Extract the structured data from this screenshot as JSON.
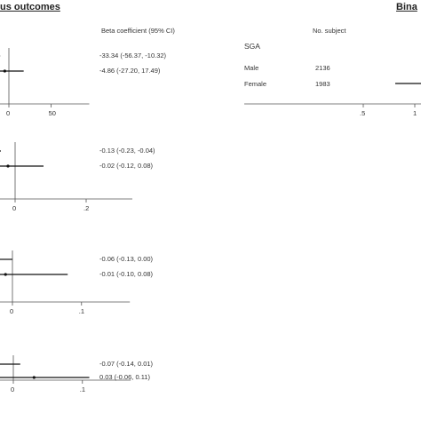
{
  "headings": {
    "left": "us outcomes",
    "right": "Bina"
  },
  "left_panel": {
    "column_header": "Beta coefficient (95% CI)"
  },
  "right_panel": {
    "column_header": "No. subject",
    "section_label": "SGA",
    "rows": [
      {
        "label": "Male",
        "n": "2136"
      },
      {
        "label": "Female",
        "n": "1983"
      }
    ],
    "tick_labels": [
      ".5",
      "1"
    ]
  },
  "colors": {
    "line": "#111111",
    "axis": "#555555"
  },
  "chart_data": [
    {
      "type": "forest",
      "title": "",
      "xlabel": "",
      "xlim": [
        -10,
        95
      ],
      "xticks": [
        0,
        50
      ],
      "xtick_labels": [
        "0",
        "50"
      ],
      "reference_line": 0,
      "rows": [
        {
          "estimate": -33.34,
          "lower": -56.37,
          "upper": -10.32,
          "label": "-33.34 (-56.37, -10.32)"
        },
        {
          "estimate": -4.86,
          "lower": -27.2,
          "upper": 17.49,
          "label": "-4.86 (-27.20, 17.49)"
        }
      ]
    },
    {
      "type": "forest",
      "title": "",
      "xlabel": "",
      "xlim": [
        -0.02,
        0.33
      ],
      "xticks": [
        0,
        0.2
      ],
      "xtick_labels": [
        "0",
        ".2"
      ],
      "reference_line": 0,
      "rows": [
        {
          "estimate": -0.13,
          "lower": -0.23,
          "upper": -0.04,
          "label": "-0.13 (-0.23, -0.04)"
        },
        {
          "estimate": -0.02,
          "lower": -0.12,
          "upper": 0.08,
          "label": "-0.02 (-0.12, 0.08)"
        }
      ]
    },
    {
      "type": "forest",
      "title": "",
      "xlabel": "",
      "xlim": [
        -0.01,
        0.17
      ],
      "xticks": [
        0,
        0.1
      ],
      "xtick_labels": [
        "0",
        ".1"
      ],
      "reference_line": 0,
      "rows": [
        {
          "estimate": -0.06,
          "lower": -0.13,
          "upper": 0.0,
          "label": "-0.06 (-0.13, 0.00)"
        },
        {
          "estimate": -0.01,
          "lower": -0.1,
          "upper": 0.08,
          "label": "-0.01 (-0.10, 0.08)"
        }
      ]
    },
    {
      "type": "forest",
      "title": "",
      "xlabel": "",
      "xlim": [
        -0.01,
        0.17
      ],
      "xticks": [
        0,
        0.1
      ],
      "xtick_labels": [
        "0",
        ".1"
      ],
      "reference_line": 0,
      "rows": [
        {
          "estimate": -0.07,
          "lower": -0.14,
          "upper": 0.01,
          "label": "-0.07 (-0.14, 0.01)"
        },
        {
          "estimate": 0.03,
          "lower": -0.06,
          "upper": 0.11,
          "label": "0.03 (-0.06, 0.11)"
        }
      ]
    }
  ]
}
